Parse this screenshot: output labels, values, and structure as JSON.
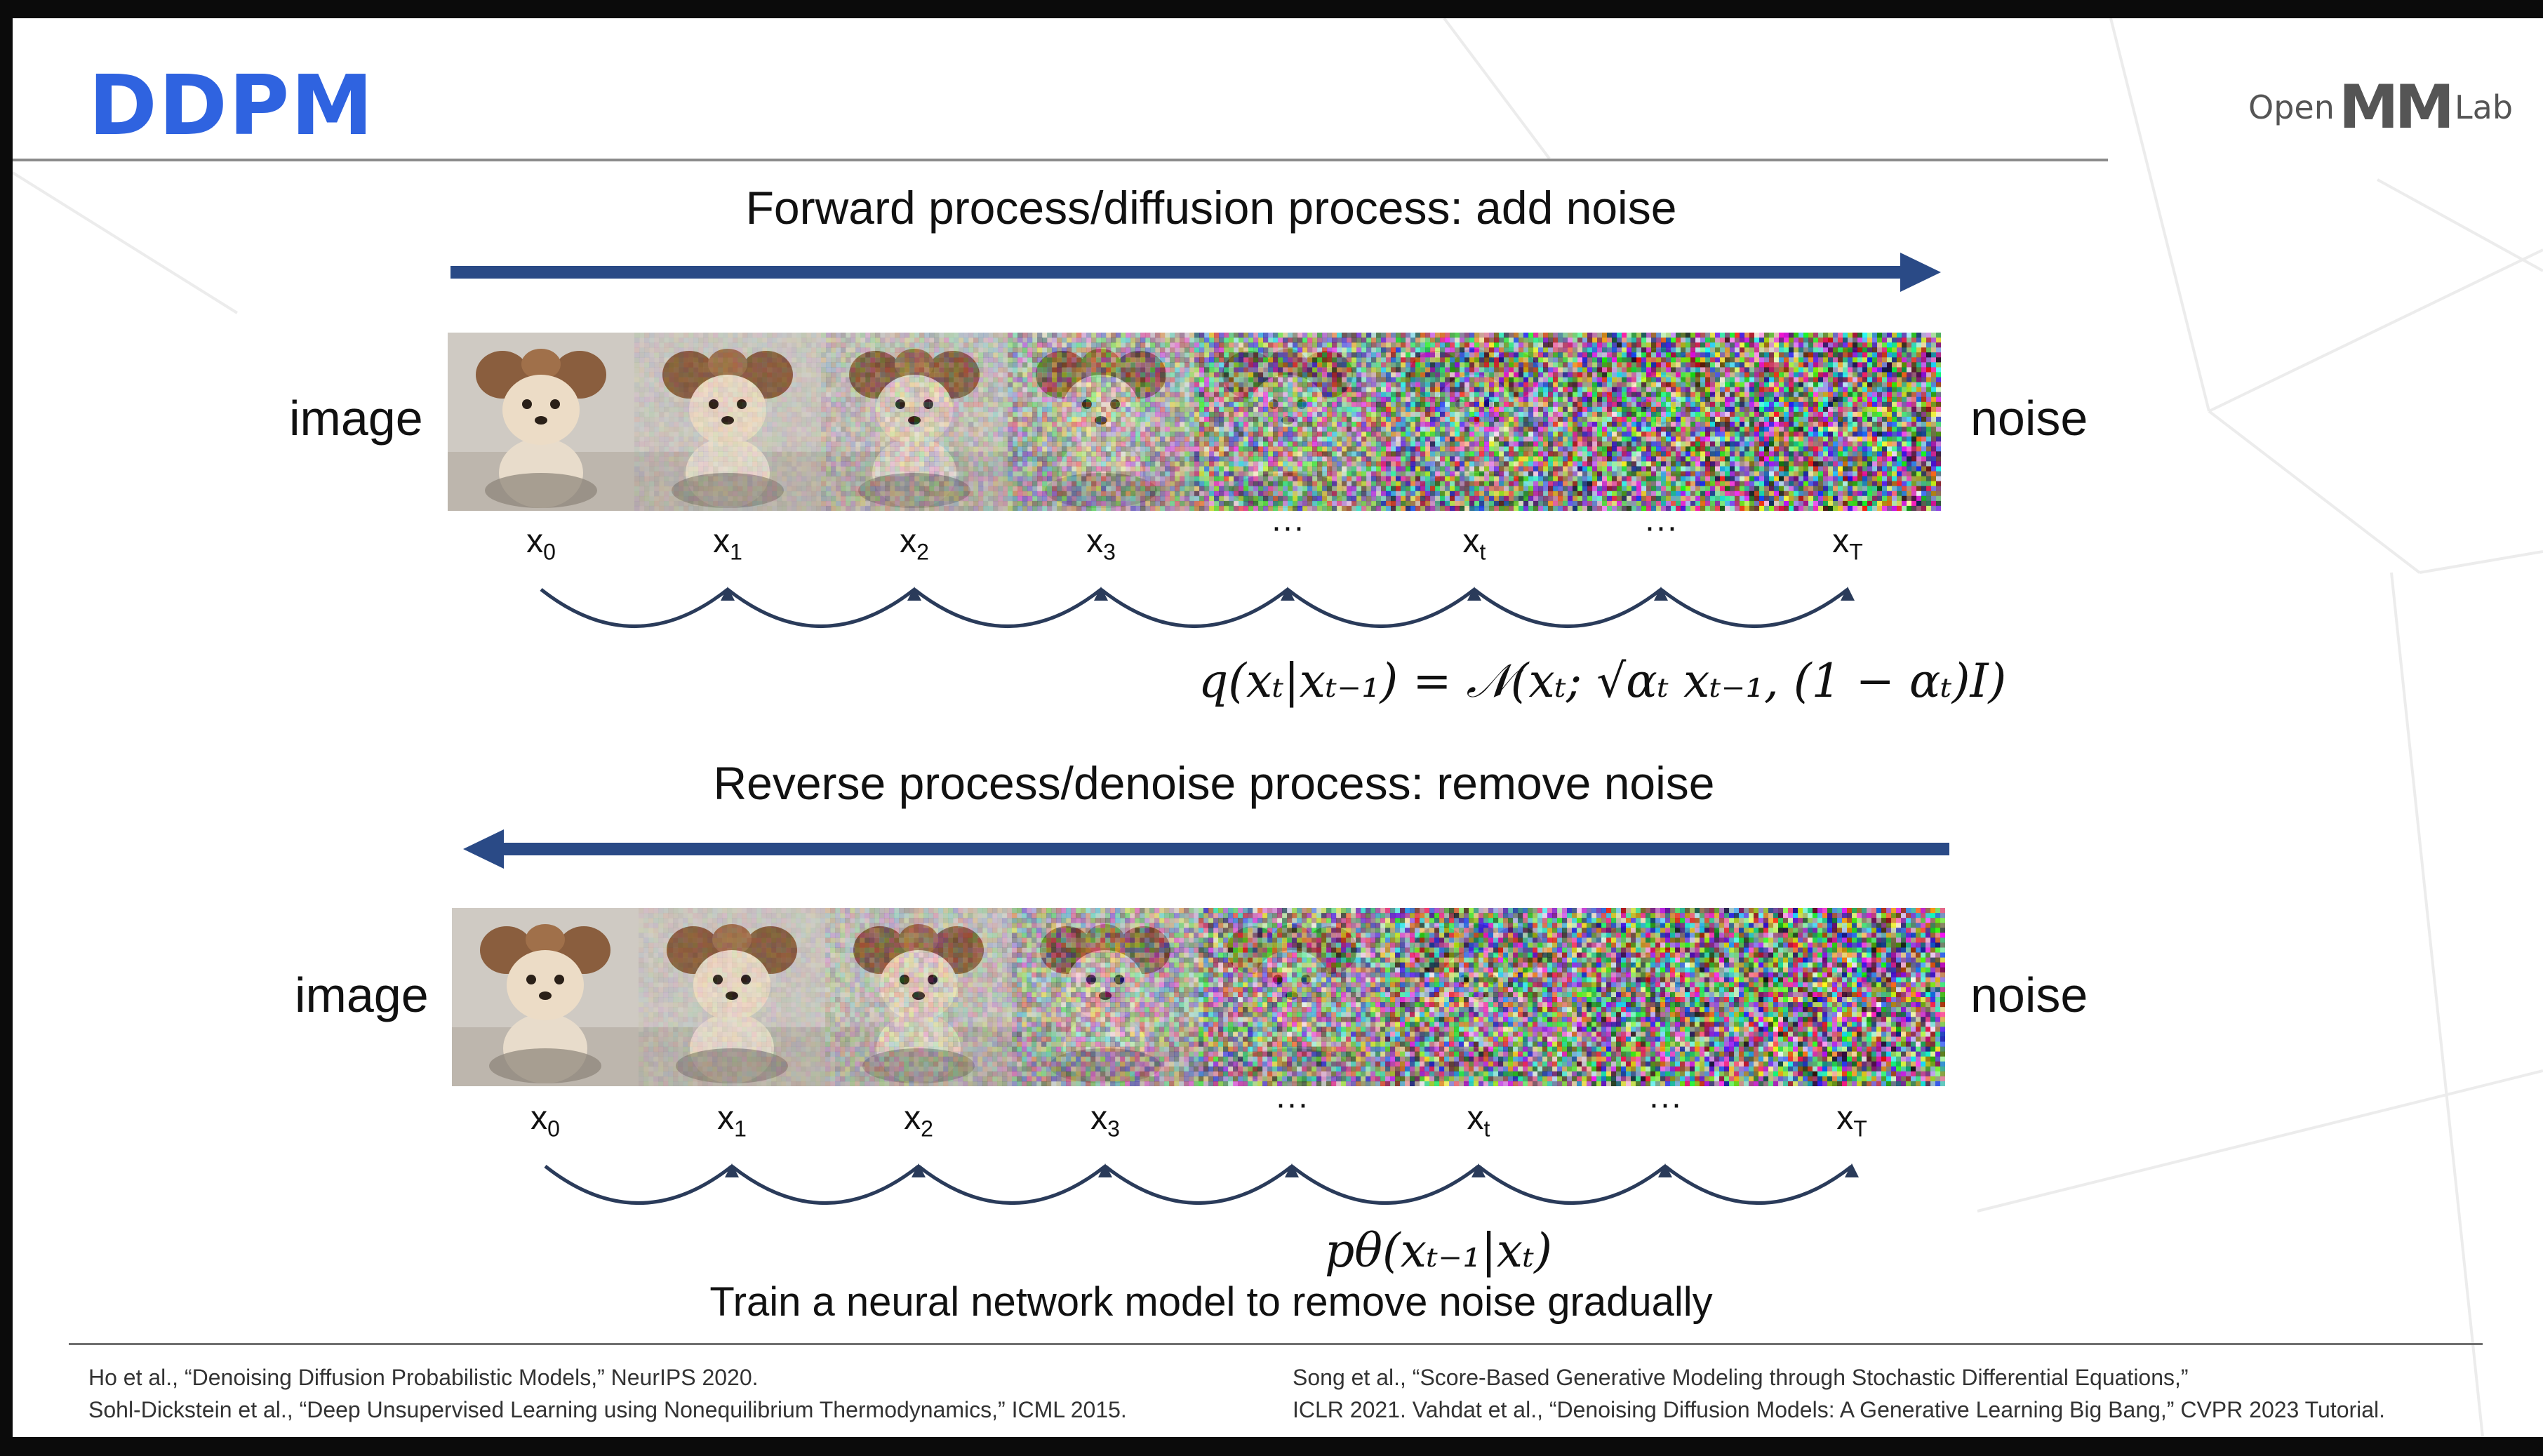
{
  "slide": {
    "title": "DDPM",
    "logo": {
      "left_text": "Open",
      "mark_text": "MM",
      "right_text": "Lab"
    }
  },
  "forward": {
    "heading": "Forward process/diffusion process: add noise",
    "left_label": "image",
    "right_label": "noise",
    "arrow_direction": "right",
    "arrow_color": "#2a4a86",
    "steps": [
      {
        "main": "x",
        "sub": "0",
        "noise": 0.0
      },
      {
        "main": "x",
        "sub": "1",
        "noise": 0.08
      },
      {
        "main": "x",
        "sub": "2",
        "noise": 0.2
      },
      {
        "main": "x",
        "sub": "3",
        "noise": 0.42
      },
      {
        "main": "···",
        "sub": "",
        "noise": 0.68
      },
      {
        "main": "x",
        "sub": "t",
        "noise": 0.85
      },
      {
        "main": "···",
        "sub": "",
        "noise": 0.95
      },
      {
        "main": "x",
        "sub": "T",
        "noise": 1.0
      }
    ],
    "formula": "q(xₜ|xₜ₋₁) = 𝒩(xₜ; √αₜ xₜ₋₁, (1 − αₜ)I)"
  },
  "reverse": {
    "heading": "Reverse process/denoise process: remove noise",
    "left_label": "image",
    "right_label": "noise",
    "arrow_direction": "left",
    "arrow_color": "#2a4a86",
    "steps": [
      {
        "main": "x",
        "sub": "0",
        "noise": 0.0
      },
      {
        "main": "x",
        "sub": "1",
        "noise": 0.08
      },
      {
        "main": "x",
        "sub": "2",
        "noise": 0.2
      },
      {
        "main": "x",
        "sub": "3",
        "noise": 0.42
      },
      {
        "main": "···",
        "sub": "",
        "noise": 0.68
      },
      {
        "main": "x",
        "sub": "t",
        "noise": 0.85
      },
      {
        "main": "···",
        "sub": "",
        "noise": 0.95
      },
      {
        "main": "x",
        "sub": "T",
        "noise": 1.0
      }
    ],
    "formula": "pθ(xₜ₋₁|xₜ)",
    "caption": "Train a neural network model to remove noise gradually"
  },
  "references": {
    "left": [
      "Ho et al., “Denoising Diffusion Probabilistic Models,” NeurIPS 2020.",
      "Sohl-Dickstein et al., “Deep Unsupervised Learning using Nonequilibrium Thermodynamics,” ICML 2015."
    ],
    "right": [
      "Song et al., “Score-Based Generative Modeling through Stochastic Differential Equations,”",
      "ICLR 2021. Vahdat et al., “Denoising Diffusion Models: A Generative Learning Big Bang,” CVPR 2023 Tutorial."
    ]
  }
}
